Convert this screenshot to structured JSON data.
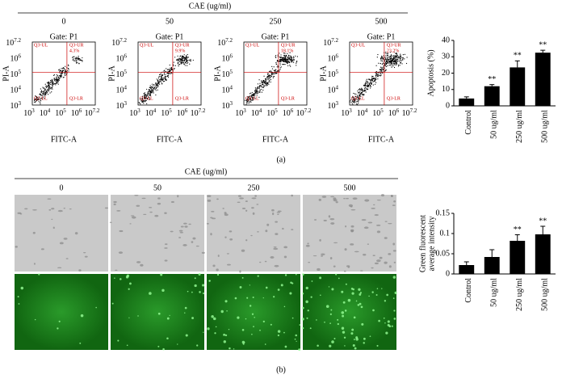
{
  "panel_a": {
    "title": "CAE (ug/ml)",
    "label": "(a)",
    "x_axis_label": "FITC-A",
    "y_axis_label": "PI-A",
    "log_ticks": [
      {
        "base": "10",
        "exp": "3"
      },
      {
        "base": "10",
        "exp": "4"
      },
      {
        "base": "10",
        "exp": "5"
      },
      {
        "base": "10",
        "exp": "6"
      },
      {
        "base": "10",
        "exp": "7.2"
      }
    ],
    "quadrants": [
      "Q3-UL",
      "Q3-UR",
      "Q3-LL",
      "Q3-LR"
    ],
    "plots": [
      {
        "concentration": "0",
        "gate": "Gate: P1",
        "ur_percent": "4.3%"
      },
      {
        "concentration": "50",
        "gate": "Gate: P1",
        "ur_percent": "9.9%"
      },
      {
        "concentration": "250",
        "gate": "Gate: P1",
        "ur_percent": "18.1%"
      },
      {
        "concentration": "500",
        "gate": "Gate: P1",
        "ur_percent": "23.2%"
      }
    ]
  },
  "panel_b": {
    "title": "CAE (ug/ml)",
    "label": "(b)",
    "concentrations": [
      "0",
      "50",
      "250",
      "500"
    ]
  },
  "chart_data": [
    {
      "type": "bar",
      "y_label": "Apoptosis (%)",
      "categories": [
        "Control",
        "50 ug/ml",
        "250 ug/ml",
        "500 ug/ml"
      ],
      "values": [
        4.5,
        12,
        23.5,
        32.5
      ],
      "errors": [
        1,
        1,
        4,
        1.5
      ],
      "significance": [
        null,
        "**",
        "**",
        "**"
      ],
      "color": "#000000",
      "ylim": [
        0,
        40
      ],
      "yticks": [
        0,
        10,
        20,
        30,
        40
      ]
    },
    {
      "type": "bar",
      "y_label": [
        "Green fluorescent",
        "average intensity"
      ],
      "categories": [
        "Control",
        "50 ug/ml",
        "250 ug/ml",
        "500 ug/ml"
      ],
      "values": [
        0.022,
        0.042,
        0.082,
        0.098
      ],
      "errors": [
        0.008,
        0.018,
        0.015,
        0.02
      ],
      "significance": [
        null,
        null,
        "**",
        "**"
      ],
      "color": "#000000",
      "ylim": [
        0,
        0.15
      ],
      "yticks": [
        0,
        0.05,
        0.1,
        0.15
      ]
    }
  ]
}
